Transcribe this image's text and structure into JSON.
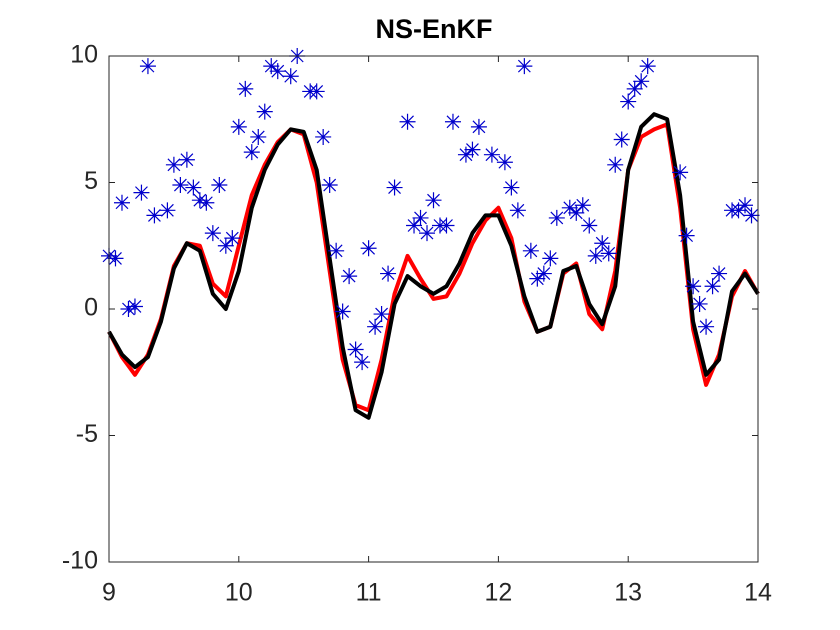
{
  "chart_data": {
    "type": "line",
    "title": "NS-EnKF",
    "xlim": [
      9,
      14
    ],
    "xticks": [
      9,
      10,
      11,
      12,
      13,
      14
    ],
    "ylim": [
      -10,
      10
    ],
    "yticks": [
      -10,
      -5,
      0,
      5,
      10
    ],
    "series": [
      {
        "type": "line",
        "color": "#ff0000",
        "x": [
          9.0,
          9.1,
          9.2,
          9.3,
          9.4,
          9.5,
          9.6,
          9.7,
          9.8,
          9.9,
          10.0,
          10.1,
          10.2,
          10.3,
          10.4,
          10.5,
          10.6,
          10.7,
          10.8,
          10.9,
          11.0,
          11.1,
          11.2,
          11.3,
          11.4,
          11.5,
          11.6,
          11.7,
          11.8,
          11.9,
          12.0,
          12.1,
          12.2,
          12.3,
          12.4,
          12.5,
          12.6,
          12.7,
          12.8,
          12.9,
          13.0,
          13.1,
          13.2,
          13.3,
          13.4,
          13.5,
          13.6,
          13.7,
          13.8,
          13.9,
          14.0
        ],
        "values": [
          -0.9,
          -1.9,
          -2.6,
          -1.8,
          -0.4,
          1.7,
          2.6,
          2.5,
          1.0,
          0.5,
          2.5,
          4.5,
          5.7,
          6.6,
          7.1,
          6.9,
          5.0,
          1.5,
          -2.0,
          -3.8,
          -4.0,
          -2.0,
          0.6,
          2.1,
          1.2,
          0.4,
          0.5,
          1.4,
          2.6,
          3.5,
          4.0,
          2.8,
          0.3,
          -0.9,
          -0.7,
          1.4,
          1.8,
          -0.2,
          -0.8,
          1.5,
          5.5,
          6.8,
          7.1,
          7.3,
          4.0,
          -0.8,
          -3.0,
          -1.8,
          0.5,
          1.5,
          0.6
        ]
      },
      {
        "type": "line",
        "color": "#000000",
        "x": [
          9.0,
          9.1,
          9.2,
          9.3,
          9.4,
          9.5,
          9.6,
          9.7,
          9.8,
          9.9,
          10.0,
          10.1,
          10.2,
          10.3,
          10.4,
          10.5,
          10.6,
          10.7,
          10.8,
          10.9,
          11.0,
          11.1,
          11.2,
          11.3,
          11.4,
          11.5,
          11.6,
          11.7,
          11.8,
          11.9,
          12.0,
          12.1,
          12.2,
          12.3,
          12.4,
          12.5,
          12.6,
          12.7,
          12.8,
          12.9,
          13.0,
          13.1,
          13.2,
          13.3,
          13.4,
          13.5,
          13.6,
          13.7,
          13.8,
          13.9,
          14.0
        ],
        "values": [
          -0.9,
          -1.8,
          -2.3,
          -1.9,
          -0.5,
          1.6,
          2.6,
          2.3,
          0.6,
          0.0,
          1.5,
          4.0,
          5.5,
          6.5,
          7.1,
          7.0,
          5.5,
          2.0,
          -1.5,
          -4.0,
          -4.3,
          -2.5,
          0.2,
          1.3,
          0.9,
          0.6,
          0.9,
          1.8,
          3.0,
          3.7,
          3.7,
          2.5,
          0.5,
          -0.9,
          -0.7,
          1.5,
          1.7,
          0.2,
          -0.6,
          0.9,
          5.5,
          7.2,
          7.7,
          7.5,
          4.5,
          -0.5,
          -2.6,
          -2.0,
          0.7,
          1.4,
          0.6
        ]
      },
      {
        "type": "scatter",
        "color": "#0000cc",
        "x": [
          9.0,
          9.05,
          9.1,
          9.15,
          9.2,
          9.25,
          9.3,
          9.35,
          9.45,
          9.5,
          9.55,
          9.6,
          9.65,
          9.7,
          9.75,
          9.8,
          9.85,
          9.9,
          9.95,
          10.0,
          10.05,
          10.1,
          10.15,
          10.2,
          10.25,
          10.3,
          10.4,
          10.45,
          10.55,
          10.6,
          10.65,
          10.7,
          10.75,
          10.8,
          10.85,
          10.9,
          10.95,
          11.0,
          11.05,
          11.1,
          11.15,
          11.2,
          11.3,
          11.35,
          11.4,
          11.45,
          11.5,
          11.55,
          11.6,
          11.65,
          11.75,
          11.8,
          11.85,
          11.95,
          12.05,
          12.1,
          12.15,
          12.2,
          12.25,
          12.3,
          12.35,
          12.4,
          12.45,
          12.55,
          12.6,
          12.65,
          12.7,
          12.75,
          12.8,
          12.85,
          12.9,
          12.95,
          13.0,
          13.05,
          13.1,
          13.15,
          13.4,
          13.45,
          13.5,
          13.55,
          13.6,
          13.65,
          13.7,
          13.8,
          13.85,
          13.9,
          13.95
        ],
        "values": [
          2.1,
          2.0,
          4.2,
          0.0,
          0.1,
          4.6,
          9.6,
          3.7,
          3.9,
          5.7,
          4.9,
          5.9,
          4.8,
          4.3,
          4.2,
          3.0,
          4.9,
          2.5,
          2.8,
          7.2,
          8.7,
          6.2,
          6.8,
          7.8,
          9.6,
          9.4,
          9.2,
          10.0,
          8.6,
          8.6,
          6.8,
          4.9,
          2.3,
          -0.1,
          1.3,
          -1.6,
          -2.1,
          2.4,
          -0.7,
          -0.2,
          1.4,
          4.8,
          7.4,
          3.3,
          3.6,
          3.0,
          4.3,
          3.3,
          3.3,
          7.4,
          6.1,
          6.3,
          7.2,
          6.1,
          5.8,
          4.8,
          3.9,
          9.6,
          2.3,
          1.2,
          1.4,
          2.0,
          3.6,
          4.0,
          3.8,
          4.1,
          3.3,
          2.1,
          2.6,
          2.2,
          5.7,
          6.7,
          8.2,
          8.7,
          9.0,
          9.6,
          5.4,
          2.9,
          0.9,
          0.2,
          -0.7,
          0.9,
          1.4,
          3.9,
          3.9,
          4.1,
          3.7
        ]
      }
    ]
  }
}
